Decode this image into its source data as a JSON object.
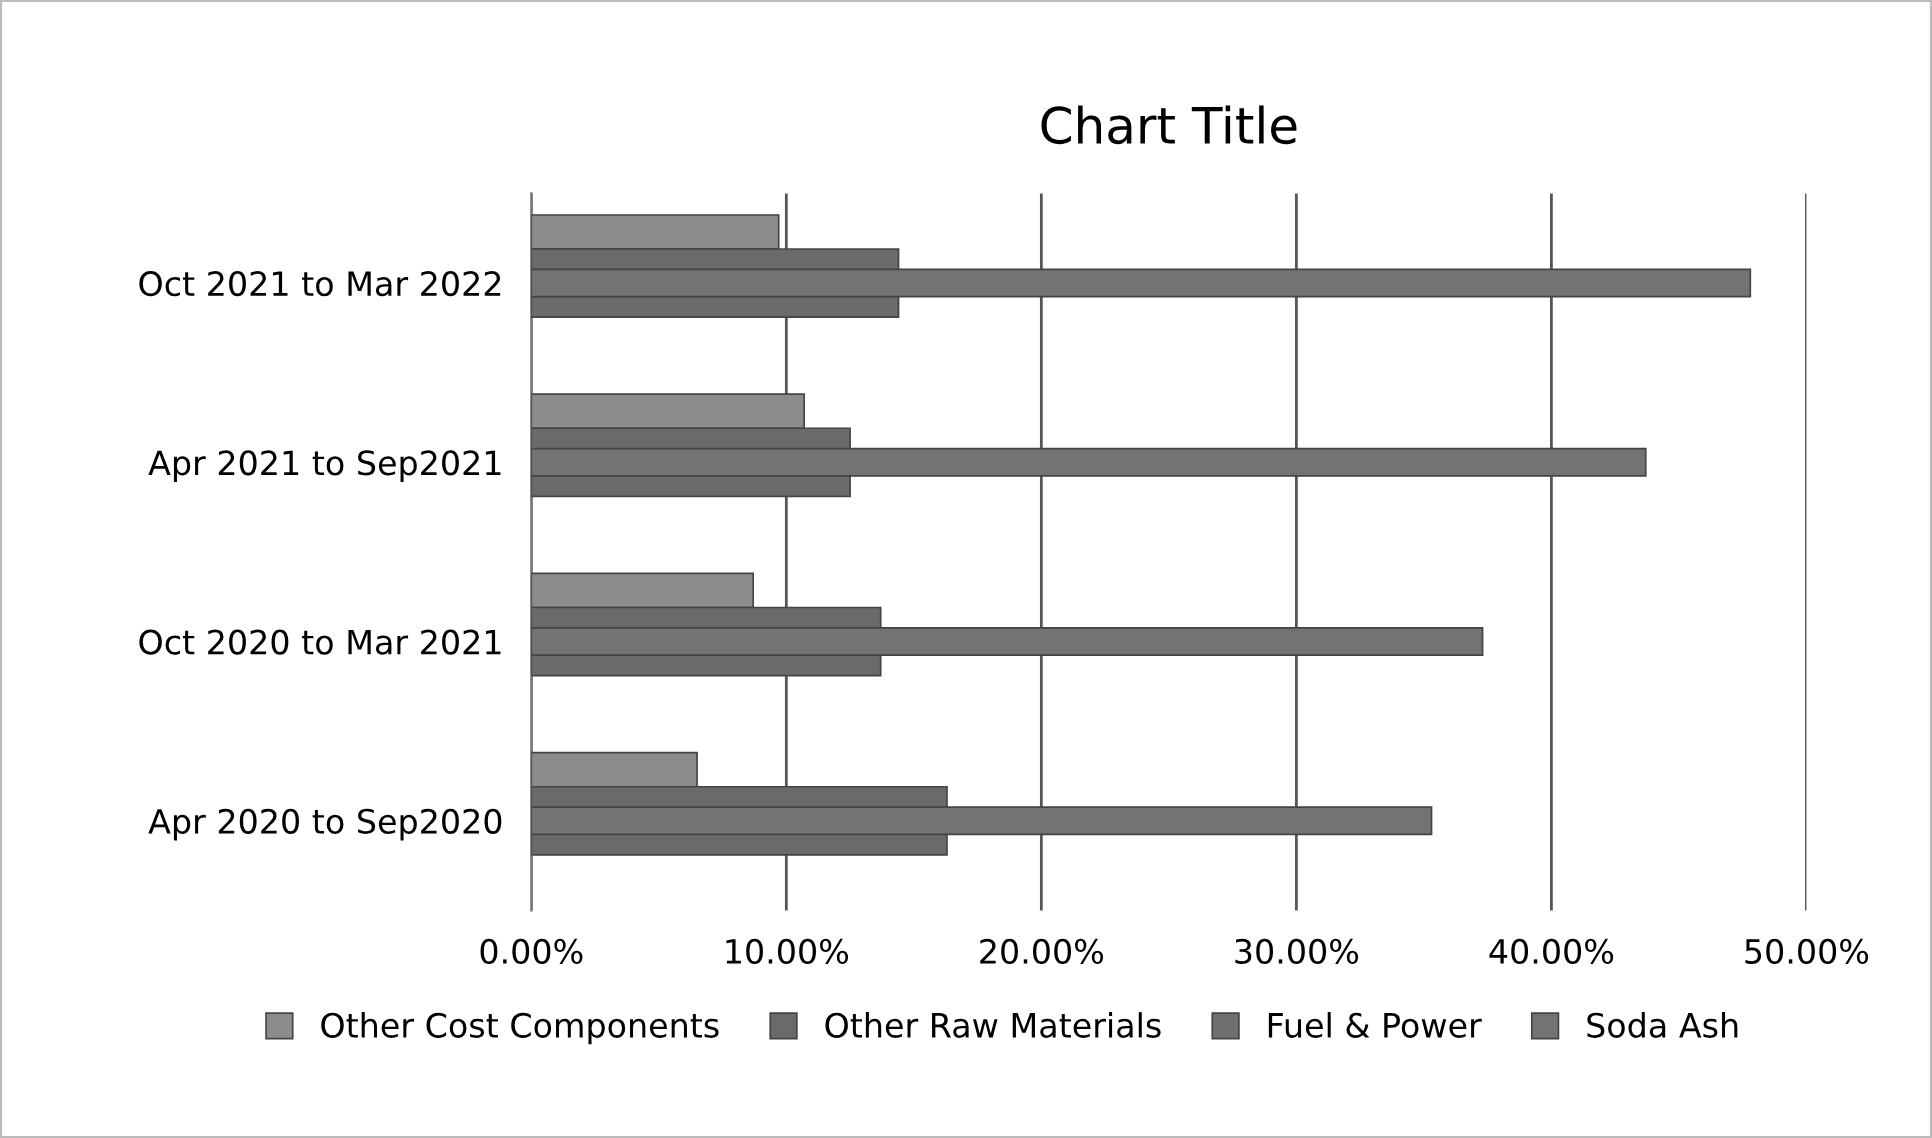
{
  "chart_data": {
    "type": "bar",
    "orientation": "horizontal",
    "title": "Chart Title",
    "categories": [
      "Oct 2021 to Mar 2022",
      "Apr 2021 to Sep2021",
      "Oct 2020 to Mar 2021",
      "Apr 2020 to Sep2020"
    ],
    "series": [
      {
        "name": "Other Cost Components",
        "color": "#8c8c8c",
        "values": [
          9.7,
          10.7,
          8.7,
          6.5
        ]
      },
      {
        "name": "Other Raw Materials",
        "color": "#6a6a6a",
        "values": [
          14.4,
          12.5,
          13.7,
          16.3
        ]
      },
      {
        "name": "Fuel & Power",
        "color": "#6f6f6f",
        "values": [
          null,
          null,
          null,
          null
        ]
      },
      {
        "name": "Soda Ash",
        "color": "#737373",
        "values": [
          47.8,
          43.7,
          37.3,
          35.3
        ]
      }
    ],
    "xlim": [
      0,
      50
    ],
    "xticks": [
      {
        "value": 0,
        "label": "0.00%"
      },
      {
        "value": 10,
        "label": "10.00%"
      },
      {
        "value": 20,
        "label": "20.00%"
      },
      {
        "value": 30,
        "label": "30.00%"
      },
      {
        "value": 40,
        "label": "40.00%"
      },
      {
        "value": 50,
        "label": "50.00%"
      }
    ],
    "grid": "x",
    "legend": "bottom"
  }
}
